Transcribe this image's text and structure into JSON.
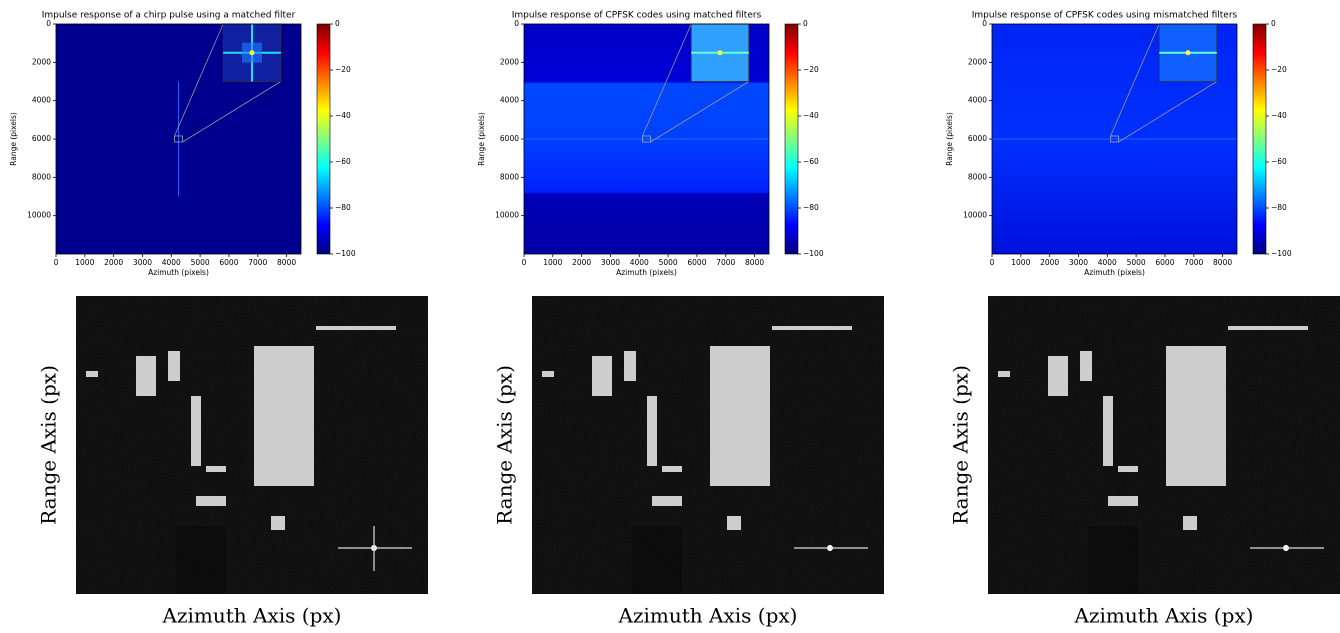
{
  "chart_data": [
    {
      "type": "heatmap",
      "title": "Impulse response of a chirp pulse using a matched filter",
      "x_label": "Azimuth (pixels)",
      "y_label": "Range (pixels)",
      "xlim": [
        0,
        8500
      ],
      "ylim": [
        12000,
        0
      ],
      "xticks": [
        0,
        1000,
        2000,
        3000,
        4000,
        5000,
        6000,
        7000,
        8000
      ],
      "yticks": [
        0,
        2000,
        4000,
        6000,
        8000,
        10000
      ],
      "clim": [
        -100,
        0
      ],
      "cticks": [
        0,
        {
          "value": -20,
          "label": "−20"
        },
        {
          "value": -40,
          "label": "−40"
        },
        {
          "value": -60,
          "label": "−60"
        },
        {
          "value": -80,
          "label": "−80"
        },
        {
          "value": -100,
          "label": "−100"
        }
      ]
    },
    {
      "type": "heatmap",
      "title": "Impulse response of CPFSK codes using matched filters",
      "x_label": "Azimuth (pixels)",
      "y_label": "Range (pixels)",
      "xlim": [
        0,
        8500
      ],
      "ylim": [
        12000,
        0
      ],
      "xticks": [
        0,
        1000,
        2000,
        3000,
        4000,
        5000,
        6000,
        7000,
        8000
      ],
      "yticks": [
        0,
        2000,
        4000,
        6000,
        8000,
        10000
      ],
      "clim": [
        -100,
        0
      ],
      "cticks": [
        0,
        {
          "value": -20,
          "label": "−20"
        },
        {
          "value": -40,
          "label": "−40"
        },
        {
          "value": -60,
          "label": "−60"
        },
        {
          "value": -80,
          "label": "−80"
        },
        {
          "value": -100,
          "label": "−100"
        }
      ]
    },
    {
      "type": "heatmap",
      "title": "Impulse response of CPFSK codes using mismatched filters",
      "x_label": "Azimuth (pixels)",
      "y_label": "Range (pixels)",
      "xlim": [
        0,
        8500
      ],
      "ylim": [
        12000,
        0
      ],
      "xticks": [
        0,
        1000,
        2000,
        3000,
        4000,
        5000,
        6000,
        7000,
        8000
      ],
      "yticks": [
        0,
        2000,
        4000,
        6000,
        8000,
        10000
      ],
      "clim": [
        -100,
        0
      ],
      "cticks": [
        0,
        {
          "value": -20,
          "label": "−20"
        },
        {
          "value": -40,
          "label": "−40"
        },
        {
          "value": -60,
          "label": "−60"
        },
        {
          "value": -80,
          "label": "−80"
        },
        {
          "value": -100,
          "label": "−100"
        }
      ]
    }
  ],
  "sar_images": [
    {
      "x_label": "Azimuth Axis (px)",
      "y_label": "Range Axis (px)"
    },
    {
      "x_label": "Azimuth Axis (px)",
      "y_label": "Range Axis (px)"
    },
    {
      "x_label": "Azimuth Axis (px)",
      "y_label": "Range Axis (px)"
    }
  ]
}
